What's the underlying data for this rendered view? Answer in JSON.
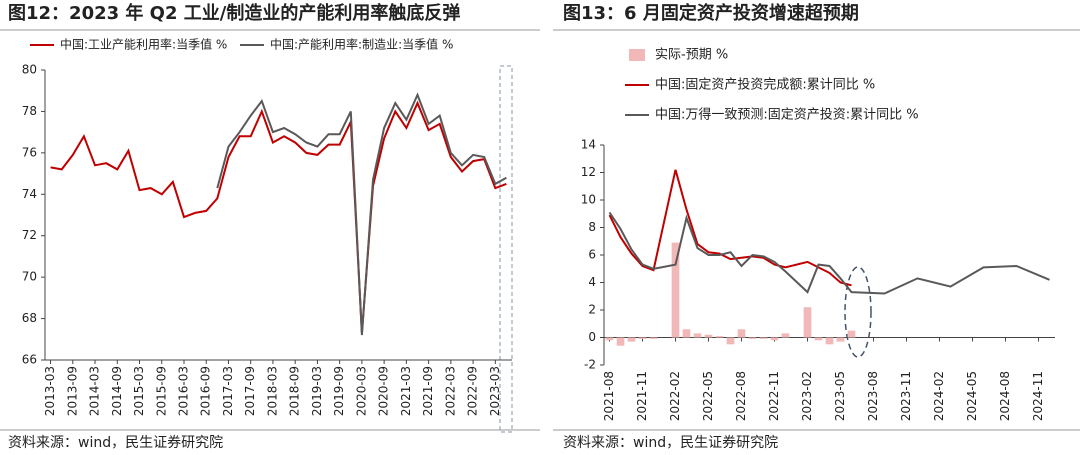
{
  "chart_data": [
    {
      "type": "line",
      "title": "图12：2023 年 Q2 工业/制造业的产能利用率触底反弹",
      "source": "资料来源：wind，民生证券研究院",
      "categories": [
        "2013-03",
        null,
        "2013-09",
        null,
        "2014-03",
        null,
        "2014-09",
        null,
        "2015-03",
        null,
        "2015-09",
        null,
        "2016-03",
        null,
        "2016-09",
        null,
        "2017-03",
        null,
        "2017-09",
        null,
        "2018-03",
        null,
        "2018-09",
        null,
        "2019-03",
        null,
        "2019-09",
        null,
        "2020-03",
        null,
        "2020-09",
        null,
        "2021-03",
        null,
        "2021-09",
        null,
        "2022-03",
        null,
        "2022-09",
        null,
        "2023-03",
        null
      ],
      "series": [
        {
          "name": "中国:工业产能利用率:当季值 %",
          "color": "#c00000",
          "values": [
            75.3,
            75.2,
            75.9,
            76.8,
            75.4,
            75.5,
            75.2,
            76.1,
            74.2,
            74.3,
            74.0,
            74.6,
            72.9,
            73.1,
            73.2,
            73.8,
            75.8,
            76.8,
            76.8,
            78.0,
            76.5,
            76.8,
            76.5,
            76.0,
            75.9,
            76.4,
            76.4,
            77.5,
            67.3,
            74.4,
            76.7,
            78.0,
            77.2,
            78.4,
            77.1,
            77.4,
            75.8,
            75.1,
            75.6,
            75.7,
            74.3,
            74.5
          ]
        },
        {
          "name": "中国:产能利用率:制造业:当季值 %",
          "color": "#595959",
          "values": [
            null,
            null,
            null,
            null,
            null,
            null,
            null,
            null,
            null,
            null,
            null,
            null,
            null,
            null,
            null,
            74.3,
            76.3,
            77.0,
            77.8,
            78.5,
            77.0,
            77.2,
            76.9,
            76.5,
            76.3,
            76.9,
            76.9,
            78.0,
            67.2,
            74.7,
            77.2,
            78.4,
            77.6,
            78.8,
            77.4,
            77.8,
            76.0,
            75.4,
            75.9,
            75.8,
            74.5,
            74.8
          ]
        }
      ],
      "ylim": [
        66,
        80
      ],
      "yticks": [
        66,
        68,
        70,
        72,
        74,
        76,
        78,
        80
      ]
    },
    {
      "type": "line",
      "title": "图13：6 月固定资产投资增速超预期",
      "source": "资料来源：wind，民生证券研究院",
      "xlim": [
        "2021-08",
        "2024-12"
      ],
      "xticks": [
        "2021-08",
        "2021-11",
        "2022-02",
        "2022-05",
        "2022-08",
        "2022-11",
        "2023-02",
        "2023-05",
        "2023-08",
        "2023-11",
        "2024-02",
        "2024-05",
        "2024-08",
        "2024-11"
      ],
      "series": [
        {
          "name": "实际-预期 %",
          "type": "bar",
          "color": "#f2b8b8",
          "x": [
            "2021-08",
            "2021-09",
            "2021-10",
            "2021-11",
            "2021-12",
            "2022-02",
            "2022-03",
            "2022-04",
            "2022-05",
            "2022-06",
            "2022-07",
            "2022-08",
            "2022-09",
            "2022-10",
            "2022-11",
            "2022-12",
            "2023-02",
            "2023-03",
            "2023-04",
            "2023-05",
            "2023-06"
          ],
          "values": [
            -0.2,
            -0.6,
            -0.3,
            -0.1,
            -0.1,
            6.9,
            0.6,
            0.3,
            0.2,
            0.1,
            -0.5,
            0.6,
            -0.1,
            -0.1,
            -0.2,
            0.3,
            2.2,
            -0.2,
            -0.5,
            -0.3,
            0.5
          ]
        },
        {
          "name": "中国:固定资产投资完成额:累计同比 %",
          "color": "#c00000",
          "x": [
            "2021-08",
            "2021-09",
            "2021-10",
            "2021-11",
            "2021-12",
            "2022-02",
            "2022-03",
            "2022-04",
            "2022-05",
            "2022-06",
            "2022-07",
            "2022-08",
            "2022-09",
            "2022-10",
            "2022-11",
            "2022-12",
            "2023-02",
            "2023-03",
            "2023-04",
            "2023-05",
            "2023-06"
          ],
          "values": [
            8.9,
            7.3,
            6.1,
            5.2,
            4.9,
            12.2,
            9.3,
            6.8,
            6.2,
            6.1,
            5.7,
            5.8,
            5.9,
            5.8,
            5.3,
            5.1,
            5.5,
            5.1,
            4.7,
            4.0,
            3.8
          ]
        },
        {
          "name": "中国:万得一致预测:固定资产投资:累计同比 %",
          "color": "#595959",
          "x": [
            "2021-08",
            "2021-09",
            "2021-10",
            "2021-11",
            "2021-12",
            "2022-02",
            "2022-03",
            "2022-04",
            "2022-05",
            "2022-06",
            "2022-07",
            "2022-08",
            "2022-09",
            "2022-10",
            "2022-11",
            "2022-12",
            "2023-02",
            "2023-03",
            "2023-04",
            "2023-05",
            "2023-06",
            "2023-09",
            "2023-12",
            "2024-03",
            "2024-06",
            "2024-09",
            "2024-12"
          ],
          "values": [
            9.1,
            7.9,
            6.4,
            5.3,
            5.0,
            5.3,
            8.7,
            6.5,
            6.0,
            6.0,
            6.2,
            5.2,
            6.0,
            5.9,
            5.5,
            4.8,
            3.3,
            5.3,
            5.2,
            4.3,
            3.3,
            3.2,
            4.3,
            3.7,
            5.1,
            5.2,
            4.2
          ]
        }
      ],
      "ylim": [
        -2,
        14
      ],
      "yticks": [
        -2,
        0,
        2,
        4,
        6,
        8,
        10,
        12,
        14
      ]
    }
  ]
}
